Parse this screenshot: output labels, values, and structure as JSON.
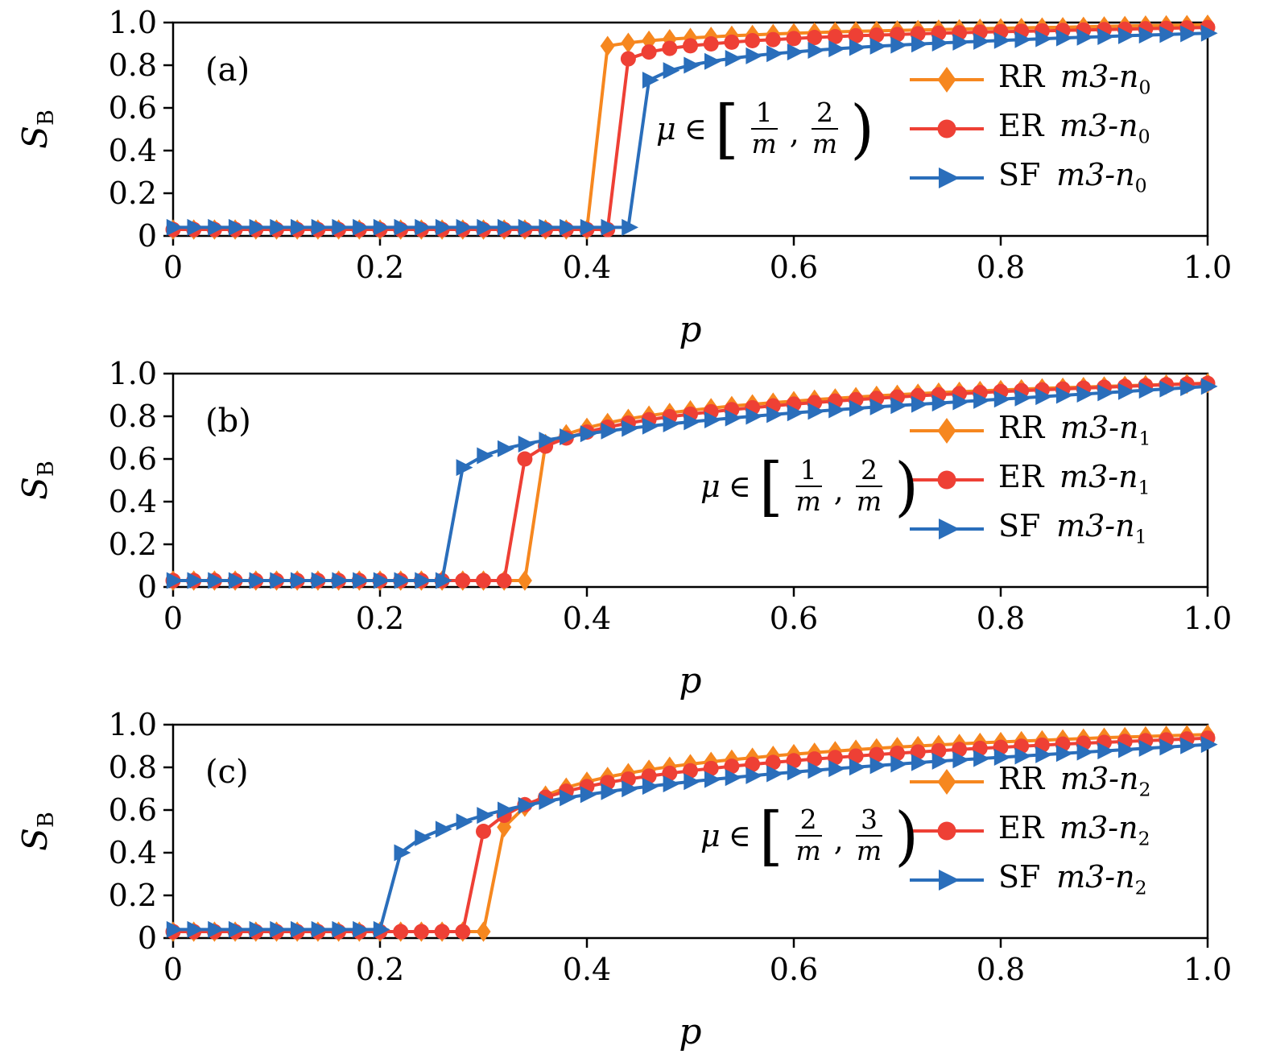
{
  "figure": {
    "background": "#ffffff"
  },
  "chart_data": [
    {
      "type": "line",
      "panel_label": "(a)",
      "xlabel": "p",
      "ylabel": "S_B",
      "xlim": [
        0,
        1
      ],
      "ylim": [
        0,
        1
      ],
      "xticks": [
        0,
        0.2,
        0.4,
        0.6,
        0.8,
        1.0
      ],
      "xtick_labels": [
        "0",
        "0.2",
        "0.4",
        "0.6",
        "0.8",
        "1.0"
      ],
      "yticks": [
        0,
        0.2,
        0.4,
        0.6,
        0.8,
        1.0
      ],
      "ytick_labels": [
        "0",
        "0.2",
        "0.4",
        "0.6",
        "0.8",
        "1.0"
      ],
      "grid": false,
      "legend_position": "right",
      "annotation": {
        "mu": "μ",
        "element_of": "∈",
        "open_bracket": "[",
        "fraction_1": {
          "num": "1",
          "den": "m"
        },
        "separator": ",",
        "fraction_2": {
          "num": "2",
          "den": "m"
        },
        "close_bracket": ")"
      },
      "x": {
        "start": 0,
        "step": 0.02,
        "count": 51
      },
      "series": [
        {
          "name": "RR",
          "label": "RR m3-n0",
          "label_prefix": "RR",
          "label_math": "m3-n",
          "label_sub": "0",
          "marker": "diamond",
          "color": "#F6871F",
          "values": [
            0.03,
            0.03,
            0.03,
            0.03,
            0.03,
            0.03,
            0.03,
            0.03,
            0.03,
            0.03,
            0.03,
            0.03,
            0.03,
            0.03,
            0.03,
            0.03,
            0.03,
            0.03,
            0.03,
            0.03,
            0.03,
            0.89,
            0.905,
            0.915,
            0.922,
            0.928,
            0.933,
            0.938,
            0.942,
            0.946,
            0.95,
            0.953,
            0.956,
            0.959,
            0.961,
            0.963,
            0.965,
            0.967,
            0.969,
            0.971,
            0.973,
            0.975,
            0.977,
            0.978,
            0.98,
            0.982,
            0.984,
            0.986,
            0.987,
            0.988,
            0.99
          ]
        },
        {
          "name": "ER",
          "label": "ER m3-n0",
          "label_prefix": "ER",
          "label_math": "m3-n",
          "label_sub": "0",
          "marker": "circle",
          "color": "#EE4035",
          "values": [
            0.03,
            0.03,
            0.03,
            0.03,
            0.03,
            0.03,
            0.03,
            0.03,
            0.03,
            0.03,
            0.03,
            0.03,
            0.03,
            0.03,
            0.03,
            0.03,
            0.03,
            0.03,
            0.03,
            0.03,
            0.03,
            0.03,
            0.83,
            0.862,
            0.879,
            0.891,
            0.9,
            0.908,
            0.915,
            0.92,
            0.925,
            0.93,
            0.934,
            0.938,
            0.941,
            0.944,
            0.947,
            0.95,
            0.952,
            0.955,
            0.957,
            0.959,
            0.961,
            0.963,
            0.965,
            0.967,
            0.969,
            0.971,
            0.973,
            0.975,
            0.977
          ]
        },
        {
          "name": "SF",
          "label": "SF m3-n0",
          "label_prefix": "SF",
          "label_math": "m3-n",
          "label_sub": "0",
          "marker": "triangle-right",
          "color": "#2A6EBB",
          "values": [
            0.04,
            0.04,
            0.04,
            0.04,
            0.04,
            0.04,
            0.04,
            0.04,
            0.04,
            0.04,
            0.04,
            0.04,
            0.04,
            0.04,
            0.04,
            0.04,
            0.04,
            0.04,
            0.04,
            0.04,
            0.04,
            0.04,
            0.04,
            0.73,
            0.775,
            0.8,
            0.818,
            0.832,
            0.844,
            0.854,
            0.862,
            0.87,
            0.877,
            0.883,
            0.889,
            0.894,
            0.899,
            0.904,
            0.908,
            0.912,
            0.916,
            0.92,
            0.924,
            0.928,
            0.931,
            0.934,
            0.938,
            0.941,
            0.944,
            0.947,
            0.95
          ]
        }
      ]
    },
    {
      "type": "line",
      "panel_label": "(b)",
      "xlabel": "p",
      "ylabel": "S_B",
      "xlim": [
        0,
        1
      ],
      "ylim": [
        0,
        1
      ],
      "xticks": [
        0,
        0.2,
        0.4,
        0.6,
        0.8,
        1.0
      ],
      "xtick_labels": [
        "0",
        "0.2",
        "0.4",
        "0.6",
        "0.8",
        "1.0"
      ],
      "yticks": [
        0,
        0.2,
        0.4,
        0.6,
        0.8,
        1.0
      ],
      "ytick_labels": [
        "0",
        "0.2",
        "0.4",
        "0.6",
        "0.8",
        "1.0"
      ],
      "grid": false,
      "legend_position": "right",
      "annotation": {
        "mu": "μ",
        "element_of": "∈",
        "open_bracket": "[",
        "fraction_1": {
          "num": "1",
          "den": "m"
        },
        "separator": ",",
        "fraction_2": {
          "num": "2",
          "den": "m"
        },
        "close_bracket": ")"
      },
      "x": {
        "start": 0,
        "step": 0.02,
        "count": 51
      },
      "series": [
        {
          "name": "RR",
          "label": "RR m3-n1",
          "label_prefix": "RR",
          "label_math": "m3-n",
          "label_sub": "1",
          "marker": "diamond",
          "color": "#F6871F",
          "values": [
            0.03,
            0.03,
            0.03,
            0.03,
            0.03,
            0.03,
            0.03,
            0.03,
            0.03,
            0.03,
            0.03,
            0.03,
            0.03,
            0.03,
            0.03,
            0.03,
            0.03,
            0.03,
            0.67,
            0.716,
            0.746,
            0.769,
            0.788,
            0.803,
            0.816,
            0.828,
            0.838,
            0.848,
            0.856,
            0.864,
            0.871,
            0.878,
            0.884,
            0.89,
            0.896,
            0.901,
            0.906,
            0.911,
            0.915,
            0.919,
            0.923,
            0.927,
            0.931,
            0.934,
            0.937,
            0.94,
            0.943,
            0.946,
            0.949,
            0.952,
            0.955
          ]
        },
        {
          "name": "ER",
          "label": "ER m3-n1",
          "label_prefix": "ER",
          "label_math": "m3-n",
          "label_sub": "1",
          "marker": "circle",
          "color": "#EE4035",
          "values": [
            0.03,
            0.03,
            0.03,
            0.03,
            0.03,
            0.03,
            0.03,
            0.03,
            0.03,
            0.03,
            0.03,
            0.03,
            0.03,
            0.03,
            0.03,
            0.03,
            0.03,
            0.6,
            0.66,
            0.698,
            0.726,
            0.749,
            0.768,
            0.784,
            0.798,
            0.81,
            0.821,
            0.831,
            0.84,
            0.849,
            0.857,
            0.864,
            0.871,
            0.878,
            0.884,
            0.89,
            0.896,
            0.901,
            0.906,
            0.911,
            0.916,
            0.92,
            0.924,
            0.928,
            0.932,
            0.936,
            0.94,
            0.944,
            0.948,
            0.951,
            0.954
          ]
        },
        {
          "name": "SF",
          "label": "SF m3-n1",
          "label_prefix": "SF",
          "label_math": "m3-n",
          "label_sub": "1",
          "marker": "triangle-right",
          "color": "#2A6EBB",
          "values": [
            0.03,
            0.03,
            0.03,
            0.03,
            0.03,
            0.03,
            0.03,
            0.03,
            0.03,
            0.03,
            0.03,
            0.03,
            0.03,
            0.03,
            0.56,
            0.615,
            0.648,
            0.67,
            0.688,
            0.704,
            0.718,
            0.731,
            0.743,
            0.754,
            0.764,
            0.774,
            0.783,
            0.792,
            0.8,
            0.808,
            0.816,
            0.823,
            0.83,
            0.837,
            0.844,
            0.85,
            0.856,
            0.862,
            0.868,
            0.874,
            0.88,
            0.886,
            0.892,
            0.898,
            0.904,
            0.91,
            0.916,
            0.922,
            0.928,
            0.934,
            0.94
          ]
        }
      ]
    },
    {
      "type": "line",
      "panel_label": "(c)",
      "xlabel": "p",
      "ylabel": "S_B",
      "xlim": [
        0,
        1
      ],
      "ylim": [
        0,
        1
      ],
      "xticks": [
        0,
        0.2,
        0.4,
        0.6,
        0.8,
        1.0
      ],
      "xtick_labels": [
        "0",
        "0.2",
        "0.4",
        "0.6",
        "0.8",
        "1.0"
      ],
      "yticks": [
        0,
        0.2,
        0.4,
        0.6,
        0.8,
        1.0
      ],
      "ytick_labels": [
        "0",
        "0.2",
        "0.4",
        "0.6",
        "0.8",
        "1.0"
      ],
      "grid": false,
      "legend_position": "right",
      "annotation": {
        "mu": "μ",
        "element_of": "∈",
        "open_bracket": "[",
        "fraction_1": {
          "num": "2",
          "den": "m"
        },
        "separator": ",",
        "fraction_2": {
          "num": "3",
          "den": "m"
        },
        "close_bracket": ")"
      },
      "x": {
        "start": 0,
        "step": 0.02,
        "count": 51
      },
      "series": [
        {
          "name": "RR",
          "label": "RR m3-n2",
          "label_prefix": "RR",
          "label_math": "m3-n",
          "label_sub": "2",
          "marker": "diamond",
          "color": "#F6871F",
          "values": [
            0.03,
            0.03,
            0.03,
            0.03,
            0.03,
            0.03,
            0.03,
            0.03,
            0.03,
            0.03,
            0.03,
            0.03,
            0.03,
            0.03,
            0.03,
            0.03,
            0.52,
            0.615,
            0.668,
            0.705,
            0.733,
            0.755,
            0.773,
            0.789,
            0.803,
            0.815,
            0.826,
            0.836,
            0.845,
            0.854,
            0.862,
            0.869,
            0.876,
            0.883,
            0.889,
            0.895,
            0.9,
            0.905,
            0.91,
            0.915,
            0.919,
            0.923,
            0.927,
            0.931,
            0.935,
            0.939,
            0.942,
            0.945,
            0.948,
            0.951,
            0.954
          ]
        },
        {
          "name": "ER",
          "label": "ER m3-n2",
          "label_prefix": "ER",
          "label_math": "m3-n",
          "label_sub": "2",
          "marker": "circle",
          "color": "#EE4035",
          "values": [
            0.03,
            0.03,
            0.03,
            0.03,
            0.03,
            0.03,
            0.03,
            0.03,
            0.03,
            0.03,
            0.03,
            0.03,
            0.03,
            0.03,
            0.03,
            0.5,
            0.575,
            0.625,
            0.66,
            0.688,
            0.71,
            0.729,
            0.745,
            0.759,
            0.772,
            0.784,
            0.795,
            0.805,
            0.814,
            0.823,
            0.831,
            0.839,
            0.846,
            0.853,
            0.86,
            0.866,
            0.872,
            0.878,
            0.884,
            0.889,
            0.894,
            0.899,
            0.904,
            0.909,
            0.913,
            0.917,
            0.921,
            0.925,
            0.929,
            0.933,
            0.937
          ]
        },
        {
          "name": "SF",
          "label": "SF m3-n2",
          "label_prefix": "SF",
          "label_math": "m3-n",
          "label_sub": "2",
          "marker": "triangle-right",
          "color": "#2A6EBB",
          "values": [
            0.04,
            0.04,
            0.04,
            0.04,
            0.04,
            0.04,
            0.04,
            0.04,
            0.04,
            0.04,
            0.04,
            0.4,
            0.47,
            0.51,
            0.545,
            0.575,
            0.6,
            0.621,
            0.64,
            0.657,
            0.672,
            0.686,
            0.699,
            0.711,
            0.722,
            0.733,
            0.743,
            0.752,
            0.761,
            0.77,
            0.778,
            0.786,
            0.794,
            0.801,
            0.808,
            0.815,
            0.822,
            0.829,
            0.835,
            0.841,
            0.847,
            0.853,
            0.859,
            0.865,
            0.871,
            0.877,
            0.883,
            0.889,
            0.895,
            0.901,
            0.907
          ]
        }
      ]
    }
  ]
}
